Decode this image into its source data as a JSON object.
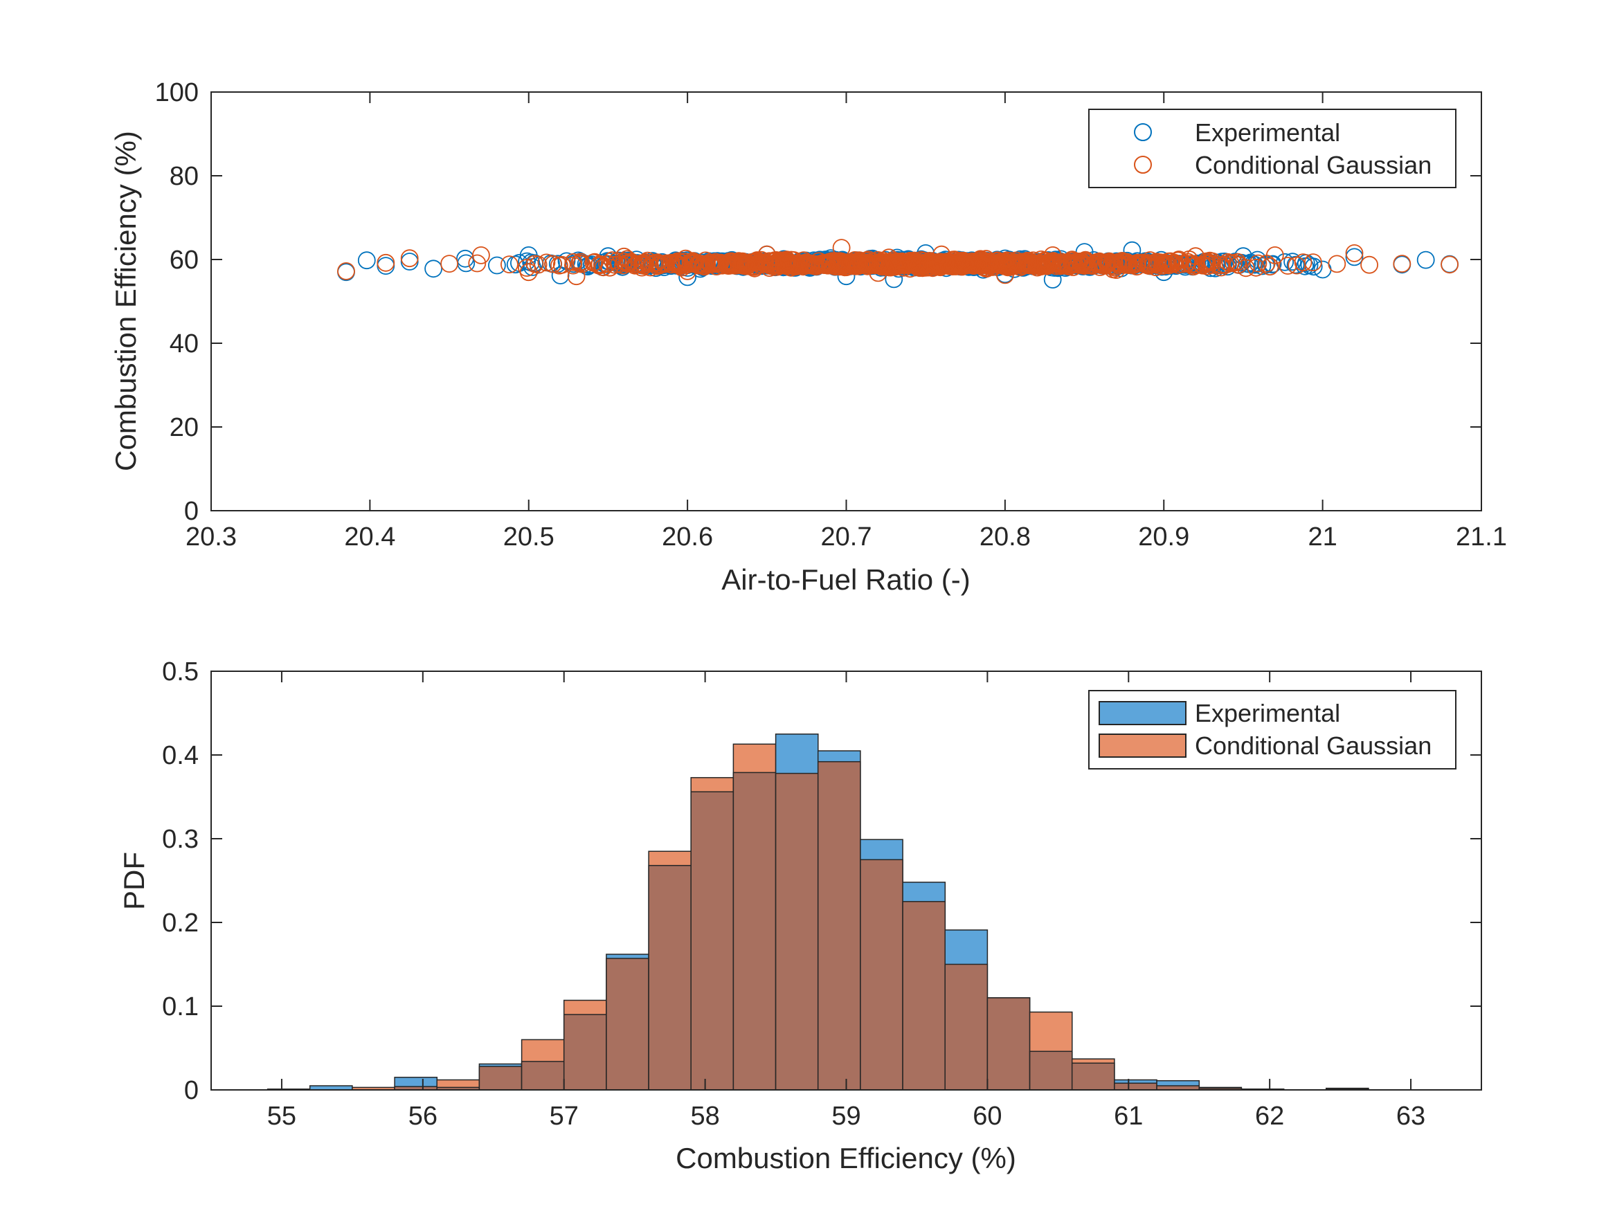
{
  "colors": {
    "experimental": "#0072BD",
    "conditional": "#D95319",
    "experimental_fill": "#5DA5DA",
    "conditional_fill": "#E8906A",
    "overlap_fill": "#A8705F",
    "axis": "#262626"
  },
  "chart_data": [
    {
      "type": "scatter",
      "xlabel": "Air-to-Fuel Ratio (-)",
      "ylabel": "Combustion Efficiency (%)",
      "xlim": [
        20.3,
        21.1
      ],
      "ylim": [
        0,
        100
      ],
      "xticks": [
        "20.3",
        "20.4",
        "20.5",
        "20.6",
        "20.7",
        "20.8",
        "20.9",
        "21",
        "21.1"
      ],
      "yticks": [
        "0",
        "20",
        "40",
        "60",
        "80",
        "100"
      ],
      "marker": "open-circle",
      "legend_position": "top-right",
      "series": [
        {
          "name": "Experimental",
          "color": "#0072BD",
          "x_range": [
            20.385,
            21.08
          ],
          "y_center": 59.0,
          "y_spread": 3.5,
          "points": [
            [
              20.385,
              57.0
            ],
            [
              20.398,
              59.8
            ],
            [
              20.41,
              58.5
            ],
            [
              20.425,
              59.5
            ],
            [
              20.44,
              57.8
            ],
            [
              20.46,
              60.2
            ],
            [
              20.48,
              58.6
            ],
            [
              20.5,
              61.0
            ],
            [
              20.52,
              56.2
            ],
            [
              20.55,
              60.8
            ],
            [
              20.6,
              55.8
            ],
            [
              20.65,
              61.2
            ],
            [
              20.7,
              56.0
            ],
            [
              20.73,
              55.3
            ],
            [
              20.75,
              61.5
            ],
            [
              20.8,
              56.5
            ],
            [
              20.83,
              55.2
            ],
            [
              20.85,
              61.8
            ],
            [
              20.88,
              62.2
            ],
            [
              20.9,
              57.0
            ],
            [
              20.95,
              60.8
            ],
            [
              21.0,
              57.6
            ],
            [
              21.02,
              60.6
            ],
            [
              21.05,
              58.8
            ],
            [
              21.065,
              59.9
            ],
            [
              21.08,
              58.9
            ]
          ]
        },
        {
          "name": "Conditional Gaussian",
          "color": "#D95319",
          "x_range": [
            20.385,
            21.08
          ],
          "y_center": 59.0,
          "y_spread": 3.5,
          "points": [
            [
              20.385,
              57.2
            ],
            [
              20.41,
              59.2
            ],
            [
              20.425,
              60.3
            ],
            [
              20.45,
              59.0
            ],
            [
              20.47,
              61.0
            ],
            [
              20.5,
              57.0
            ],
            [
              20.53,
              56.0
            ],
            [
              20.56,
              60.7
            ],
            [
              20.6,
              57.2
            ],
            [
              20.65,
              61.2
            ],
            [
              20.697,
              62.8
            ],
            [
              20.72,
              56.8
            ],
            [
              20.76,
              61.2
            ],
            [
              20.8,
              56.3
            ],
            [
              20.83,
              61.0
            ],
            [
              20.87,
              57.5
            ],
            [
              20.92,
              60.8
            ],
            [
              20.97,
              61.0
            ],
            [
              21.02,
              61.5
            ],
            [
              21.05,
              59.0
            ],
            [
              21.08,
              58.8
            ]
          ]
        }
      ]
    },
    {
      "type": "bar",
      "subtype": "histogram",
      "xlabel": "Combustion Efficiency (%)",
      "ylabel": "PDF",
      "xlim": [
        54.5,
        63.5
      ],
      "ylim": [
        0,
        0.5
      ],
      "xticks": [
        "55",
        "56",
        "57",
        "58",
        "59",
        "60",
        "61",
        "62",
        "63"
      ],
      "yticks": [
        "0",
        "0.1",
        "0.2",
        "0.3",
        "0.4",
        "0.5"
      ],
      "bin_start": 54.9,
      "bin_width": 0.3,
      "legend_position": "top-right",
      "series": [
        {
          "name": "Experimental",
          "color": "#5DA5DA",
          "values": [
            0.001,
            0.005,
            0.0,
            0.015,
            0.003,
            0.031,
            0.034,
            0.09,
            0.162,
            0.268,
            0.356,
            0.379,
            0.425,
            0.405,
            0.299,
            0.248,
            0.191,
            0.11,
            0.046,
            0.032,
            0.012,
            0.011,
            0.002,
            0.001,
            0.0,
            0.001
          ]
        },
        {
          "name": "Conditional Gaussian",
          "color": "#E8906A",
          "values": [
            0.0,
            0.0,
            0.003,
            0.004,
            0.012,
            0.028,
            0.06,
            0.107,
            0.157,
            0.285,
            0.373,
            0.413,
            0.378,
            0.392,
            0.275,
            0.225,
            0.15,
            0.11,
            0.093,
            0.037,
            0.008,
            0.005,
            0.003,
            0.001,
            0.0,
            0.002
          ]
        }
      ]
    }
  ]
}
